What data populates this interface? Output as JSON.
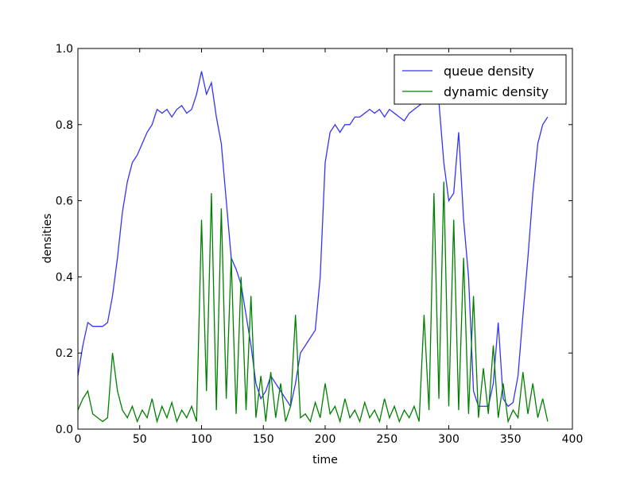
{
  "chart_data": {
    "type": "line",
    "xlabel": "time",
    "ylabel": "densities",
    "xlim": [
      0,
      400
    ],
    "ylim": [
      0,
      1
    ],
    "xticks": [
      0,
      50,
      100,
      150,
      200,
      250,
      300,
      350,
      400
    ],
    "yticks": [
      {
        "value": 0,
        "label": "0.0"
      },
      0.2,
      0.4,
      0.6,
      0.8,
      {
        "value": 1,
        "label": "1.0"
      }
    ],
    "legend": "upper right",
    "x": [
      0,
      4,
      8,
      12,
      16,
      20,
      24,
      28,
      32,
      36,
      40,
      44,
      48,
      52,
      56,
      60,
      64,
      68,
      72,
      76,
      80,
      84,
      88,
      92,
      96,
      100,
      104,
      108,
      112,
      116,
      120,
      124,
      128,
      132,
      136,
      140,
      144,
      148,
      152,
      156,
      160,
      164,
      168,
      172,
      176,
      180,
      184,
      188,
      192,
      196,
      200,
      204,
      208,
      212,
      216,
      220,
      224,
      228,
      232,
      236,
      240,
      244,
      248,
      252,
      256,
      260,
      264,
      268,
      272,
      276,
      280,
      284,
      288,
      292,
      296,
      300,
      304,
      308,
      312,
      316,
      320,
      324,
      328,
      332,
      336,
      340,
      344,
      348,
      352,
      356,
      360,
      364,
      368,
      372,
      376,
      380
    ],
    "series": [
      {
        "name": "queue density",
        "color": "#3333ff",
        "values": [
          0.14,
          0.22,
          0.28,
          0.27,
          0.27,
          0.27,
          0.28,
          0.35,
          0.45,
          0.57,
          0.65,
          0.7,
          0.72,
          0.75,
          0.78,
          0.8,
          0.84,
          0.83,
          0.84,
          0.82,
          0.84,
          0.85,
          0.83,
          0.84,
          0.88,
          0.94,
          0.88,
          0.91,
          0.82,
          0.75,
          0.6,
          0.45,
          0.42,
          0.38,
          0.3,
          0.22,
          0.12,
          0.08,
          0.1,
          0.14,
          0.12,
          0.1,
          0.08,
          0.06,
          0.12,
          0.2,
          0.22,
          0.24,
          0.26,
          0.4,
          0.7,
          0.78,
          0.8,
          0.78,
          0.8,
          0.8,
          0.82,
          0.82,
          0.83,
          0.84,
          0.83,
          0.84,
          0.82,
          0.84,
          0.83,
          0.82,
          0.81,
          0.83,
          0.84,
          0.85,
          0.86,
          0.88,
          0.9,
          0.86,
          0.7,
          0.6,
          0.62,
          0.78,
          0.55,
          0.4,
          0.1,
          0.06,
          0.06,
          0.06,
          0.12,
          0.28,
          0.08,
          0.06,
          0.07,
          0.14,
          0.3,
          0.45,
          0.62,
          0.75,
          0.8,
          0.82
        ]
      },
      {
        "name": "dynamic density",
        "color": "#008000",
        "values": [
          0.05,
          0.08,
          0.1,
          0.04,
          0.03,
          0.02,
          0.03,
          0.2,
          0.1,
          0.05,
          0.03,
          0.06,
          0.02,
          0.05,
          0.03,
          0.08,
          0.02,
          0.06,
          0.03,
          0.07,
          0.02,
          0.05,
          0.03,
          0.06,
          0.02,
          0.55,
          0.1,
          0.62,
          0.05,
          0.58,
          0.08,
          0.45,
          0.04,
          0.4,
          0.05,
          0.35,
          0.03,
          0.14,
          0.02,
          0.15,
          0.03,
          0.12,
          0.02,
          0.06,
          0.3,
          0.03,
          0.04,
          0.02,
          0.07,
          0.03,
          0.12,
          0.04,
          0.06,
          0.02,
          0.08,
          0.03,
          0.05,
          0.02,
          0.07,
          0.03,
          0.05,
          0.02,
          0.08,
          0.03,
          0.06,
          0.02,
          0.05,
          0.03,
          0.06,
          0.02,
          0.3,
          0.05,
          0.62,
          0.08,
          0.65,
          0.06,
          0.55,
          0.05,
          0.45,
          0.04,
          0.35,
          0.03,
          0.16,
          0.04,
          0.22,
          0.03,
          0.12,
          0.02,
          0.05,
          0.03,
          0.15,
          0.04,
          0.12,
          0.03,
          0.08,
          0.02
        ]
      }
    ]
  }
}
